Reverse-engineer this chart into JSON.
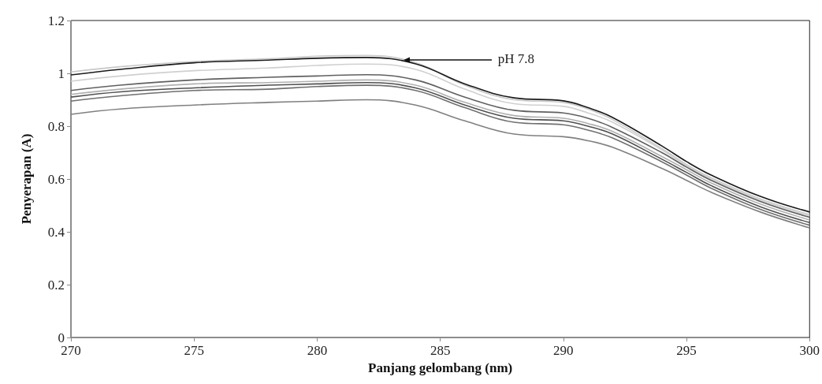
{
  "chart_data": {
    "type": "line",
    "xlabel": "Panjang gelombang (nm)",
    "ylabel": "Penyerapan (A)",
    "x": [
      270,
      272,
      275,
      278,
      280,
      282,
      284,
      286,
      288,
      290,
      291,
      292,
      294,
      295,
      296,
      298,
      300
    ],
    "xlim": [
      270,
      300
    ],
    "xticks": [
      270,
      275,
      280,
      285,
      290,
      295,
      300
    ],
    "ylim": [
      0,
      1.2
    ],
    "yticks": [
      0,
      0.2,
      0.4,
      0.6,
      0.8,
      1,
      1.2
    ],
    "marker": "none",
    "line_style": "solid",
    "annotations": [
      {
        "text": "pH 7.8",
        "x": 283.5,
        "y": 1.05
      }
    ],
    "series": [
      {
        "color": "#c8c8c8",
        "values": [
          1.005,
          1.025,
          1.045,
          1.055,
          1.065,
          1.068,
          1.04,
          0.955,
          0.9,
          0.89,
          0.865,
          0.825,
          0.715,
          0.655,
          0.605,
          0.525,
          0.465
        ]
      },
      {
        "color": "#d0d0d0",
        "values": [
          0.97,
          0.99,
          1.01,
          1.02,
          1.03,
          1.035,
          1.015,
          0.94,
          0.885,
          0.875,
          0.85,
          0.815,
          0.71,
          0.65,
          0.6,
          0.52,
          0.46
        ]
      },
      {
        "color": "#606060",
        "values": [
          0.935,
          0.955,
          0.975,
          0.985,
          0.99,
          0.995,
          0.975,
          0.91,
          0.86,
          0.85,
          0.83,
          0.795,
          0.7,
          0.645,
          0.595,
          0.515,
          0.455
        ]
      },
      {
        "color": "#b0b0b0",
        "values": [
          0.92,
          0.94,
          0.96,
          0.965,
          0.97,
          0.975,
          0.955,
          0.89,
          0.84,
          0.83,
          0.81,
          0.78,
          0.685,
          0.635,
          0.585,
          0.505,
          0.445
        ]
      },
      {
        "color": "#505050",
        "values": [
          0.91,
          0.93,
          0.945,
          0.955,
          0.96,
          0.965,
          0.945,
          0.88,
          0.83,
          0.82,
          0.8,
          0.77,
          0.675,
          0.625,
          0.575,
          0.495,
          0.435
        ]
      },
      {
        "color": "#707070",
        "values": [
          0.895,
          0.915,
          0.935,
          0.94,
          0.95,
          0.955,
          0.935,
          0.87,
          0.815,
          0.805,
          0.785,
          0.755,
          0.665,
          0.615,
          0.565,
          0.485,
          0.425
        ]
      },
      {
        "color": "#808080",
        "values": [
          0.845,
          0.865,
          0.88,
          0.89,
          0.895,
          0.9,
          0.88,
          0.82,
          0.77,
          0.76,
          0.745,
          0.72,
          0.64,
          0.595,
          0.55,
          0.475,
          0.415
        ]
      },
      {
        "color": "#1a1a1a",
        "values": [
          0.994,
          1.015,
          1.04,
          1.05,
          1.057,
          1.06,
          1.036,
          0.96,
          0.907,
          0.896,
          0.87,
          0.833,
          0.725,
          0.666,
          0.615,
          0.534,
          0.475
        ]
      }
    ]
  }
}
